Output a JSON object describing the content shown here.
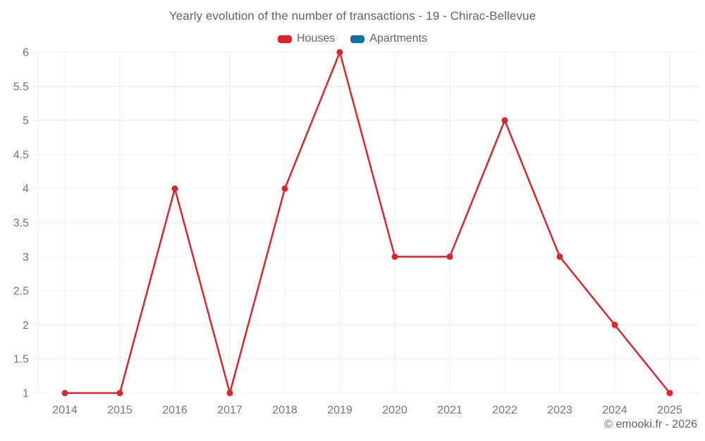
{
  "chart": {
    "title": "Yearly evolution of the number of transactions - 19 - Chirac-Bellevue",
    "legend": [
      {
        "label": "Houses",
        "color": "#d9252d"
      },
      {
        "label": "Apartments",
        "color": "#17709d"
      }
    ],
    "copyright": "© emooki.fr - 2026"
  },
  "chart_data": {
    "type": "line",
    "title": "Yearly evolution of the number of transactions - 19 - Chirac-Bellevue",
    "x": [
      2014,
      2015,
      2016,
      2017,
      2018,
      2019,
      2020,
      2021,
      2022,
      2023,
      2024,
      2025
    ],
    "series": [
      {
        "name": "Houses",
        "color": "#d9252d",
        "values": [
          1,
          1,
          4,
          1,
          4,
          6,
          3,
          3,
          5,
          3,
          2,
          1
        ]
      },
      {
        "name": "Apartments",
        "color": "#17709d",
        "values": []
      }
    ],
    "xlabel": "",
    "ylabel": "",
    "ylim": [
      1,
      6
    ],
    "yticks": [
      1,
      1.5,
      2,
      2.5,
      3,
      3.5,
      4,
      4.5,
      5,
      5.5,
      6
    ],
    "grid": true,
    "legend_position": "top",
    "annotations": [
      "© emooki.fr - 2026"
    ]
  }
}
